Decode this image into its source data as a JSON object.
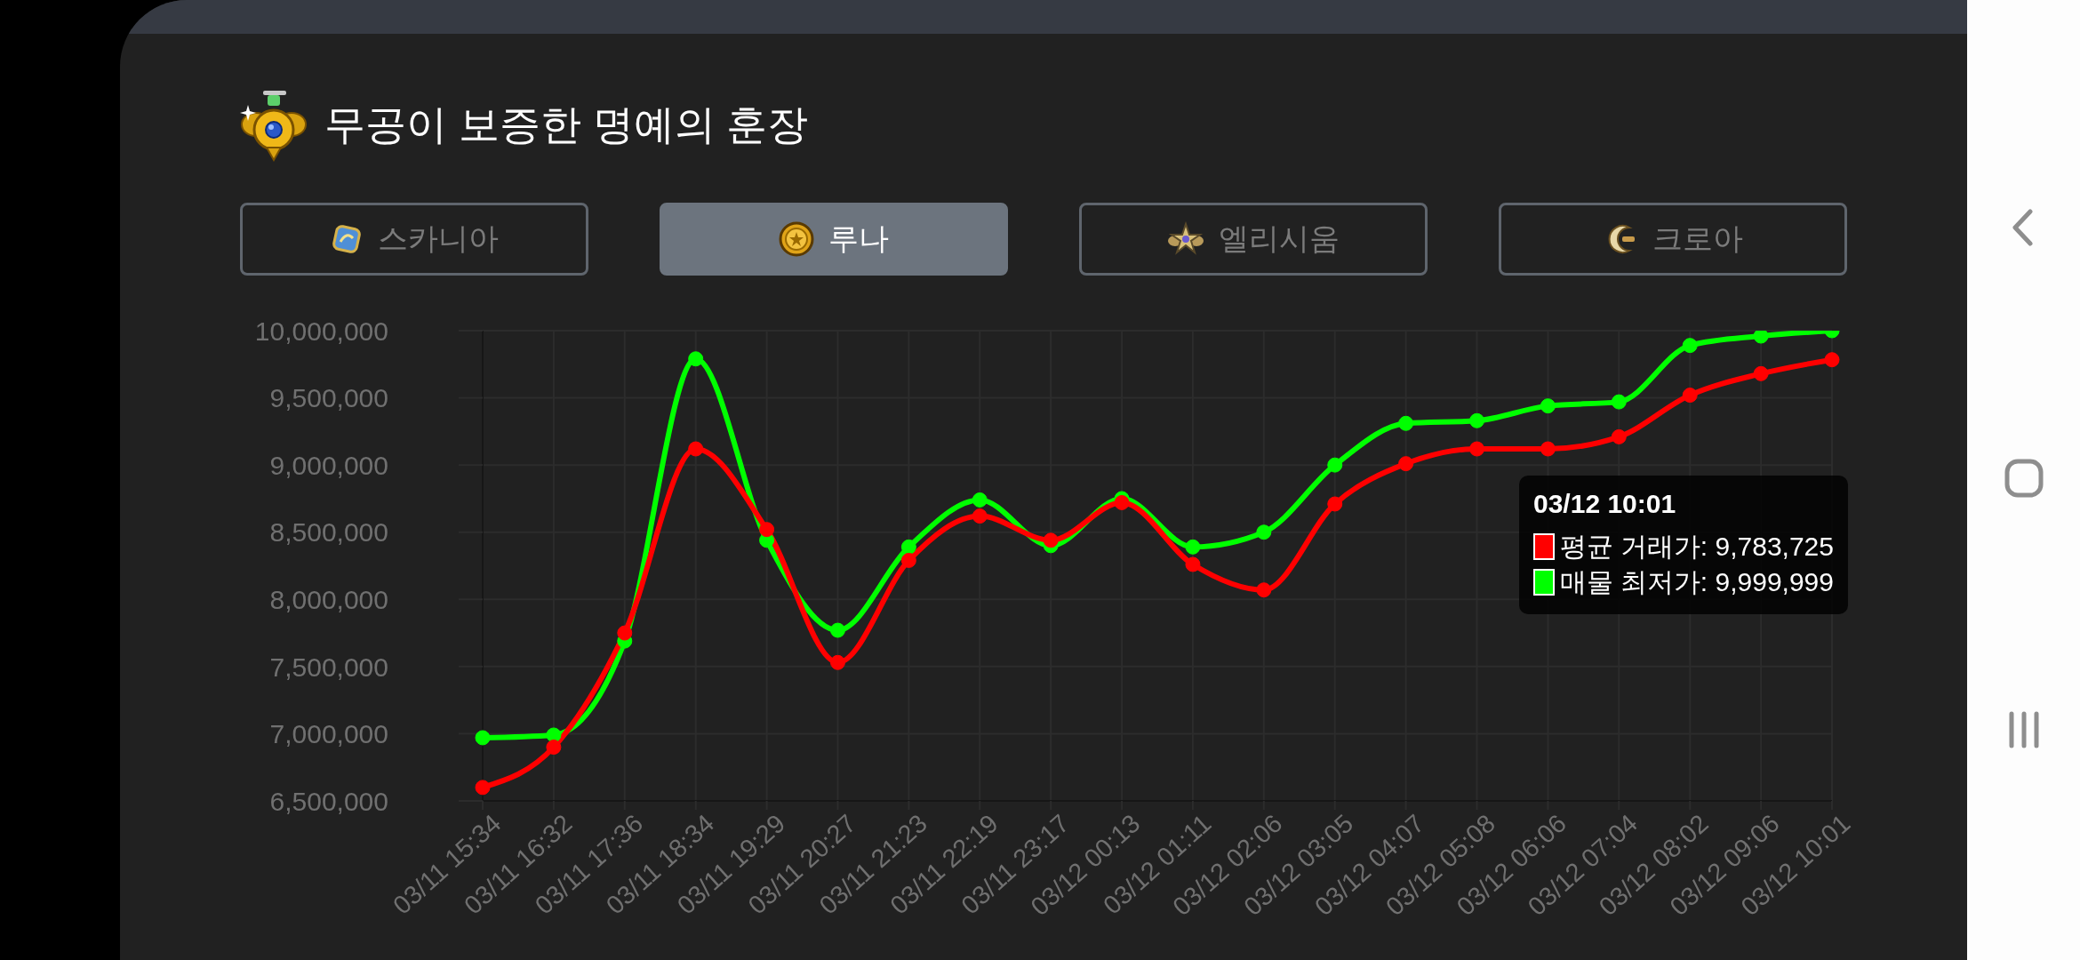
{
  "chart_data": {
    "type": "line",
    "title": "무공이 보증한 명예의 훈장",
    "annotations": [
      "스카니아",
      "루나",
      "엘리시움",
      "크로아",
      ": 9,783,725",
      ": 9,999,999"
    ],
    "categories": [
      "03/11 15:34",
      "03/11 16:32",
      "03/11 17:36",
      "03/11 18:34",
      "03/11 19:29",
      "03/11 20:27",
      "03/11 21:23",
      "03/11 22:19",
      "03/11 23:17",
      "03/12 00:13",
      "03/12 01:11",
      "03/12 02:06",
      "03/12 03:05",
      "03/12 04:07",
      "03/12 05:08",
      "03/12 06:06",
      "03/12 07:04",
      "03/12 08:02",
      "03/12 09:06",
      "03/12 10:01"
    ],
    "series": [
      {
        "name": "평균 거래가",
        "color": "#ff0000",
        "values": [
          6600000,
          6900000,
          7750000,
          9120000,
          8520000,
          7530000,
          8290000,
          8620000,
          8440000,
          8720000,
          8260000,
          8070000,
          8710000,
          9010000,
          9120000,
          9120000,
          9210000,
          9520000,
          9680000,
          9783725
        ]
      },
      {
        "name": "매물 최저가",
        "color": "#00ff00",
        "values": [
          6970000,
          6990000,
          7690000,
          9790000,
          8440000,
          7770000,
          8390000,
          8740000,
          8400000,
          8750000,
          8390000,
          8500000,
          9000000,
          9310000,
          9330000,
          9440000,
          9470000,
          9890000,
          9960000,
          9999999
        ]
      }
    ],
    "ylim": [
      6500000,
      10000000
    ],
    "yticks": [
      {
        "value": 6500000,
        "label": "6,500,000"
      },
      {
        "value": 7000000,
        "label": "7,000,000"
      },
      {
        "value": 7500000,
        "label": "7,500,000"
      },
      {
        "value": 8000000,
        "label": "8,000,000"
      },
      {
        "value": 8500000,
        "label": "8,500,000"
      },
      {
        "value": 9000000,
        "label": "9,000,000"
      },
      {
        "value": 9500000,
        "label": "9,500,000"
      },
      {
        "value": 10000000,
        "label": "10,000,000"
      }
    ],
    "grid": true,
    "legend": "right",
    "legend_title": "03/12 10:01",
    "marker": "circle",
    "line_style": "solid"
  }
}
